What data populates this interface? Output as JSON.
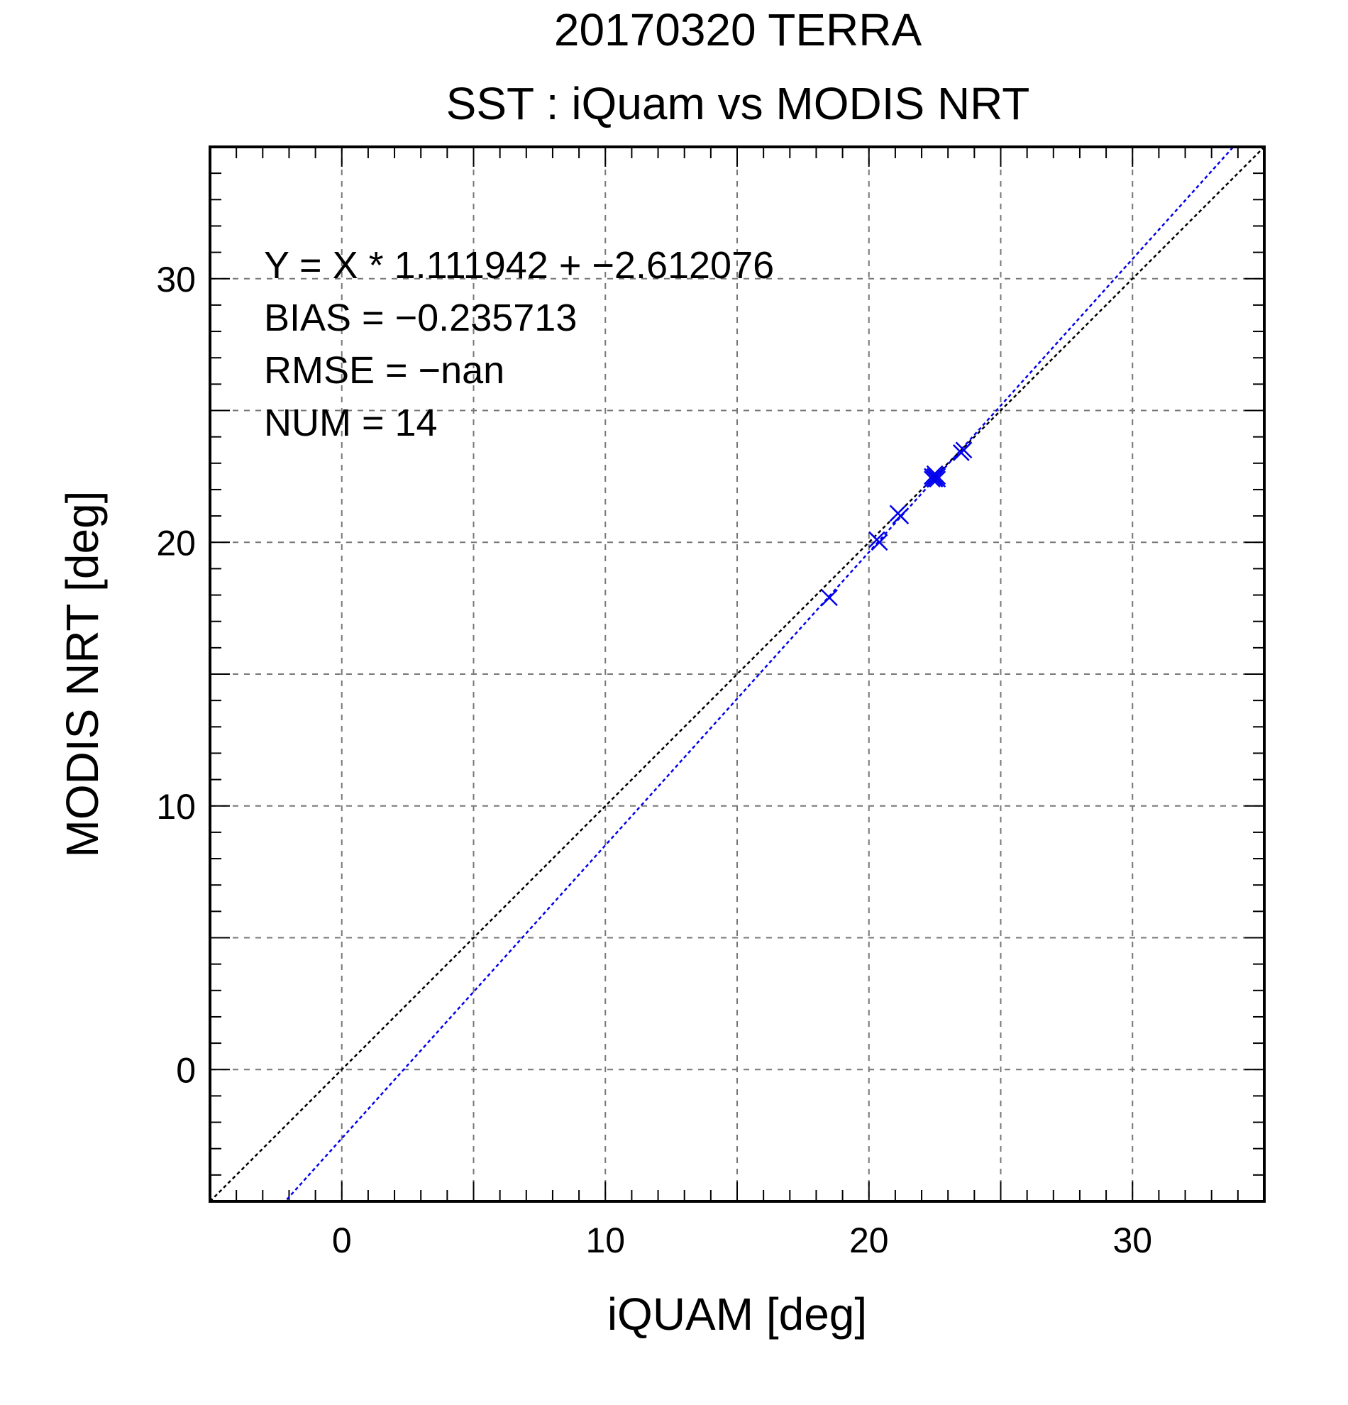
{
  "chart_data": {
    "type": "scatter",
    "title": "20170320 TERRA",
    "subtitle": "SST : iQuam vs MODIS NRT",
    "xlabel": "iQUAM [deg]",
    "ylabel": "MODIS NRT [deg]",
    "xlim": [
      -5,
      35
    ],
    "ylim": [
      -5,
      35
    ],
    "x_ticks": [
      0,
      10,
      20,
      30
    ],
    "y_ticks": [
      0,
      10,
      20,
      30
    ],
    "x_tick_labels": [
      "0",
      "10",
      "20",
      "30"
    ],
    "y_tick_labels": [
      "0",
      "10",
      "20",
      "30"
    ],
    "grid": true,
    "grid_step": 5,
    "minor_tick_step": 1,
    "stats": {
      "fit_text": "Y = X * 1.111942 + −2.612076",
      "bias_text": "BIAS = −0.235713",
      "rmse_text": "RMSE = −nan",
      "num_text": "NUM = 14"
    },
    "fit_line": {
      "slope": 1.111942,
      "intercept": -2.612076,
      "color": "#0000ee"
    },
    "identity_line": {
      "slope": 1,
      "intercept": 0,
      "color": "#000000"
    },
    "marker_color": "#0000ee",
    "points": [
      {
        "x": 18.5,
        "y": 17.9
      },
      {
        "x": 20.3,
        "y": 20.1
      },
      {
        "x": 20.4,
        "y": 20.0
      },
      {
        "x": 21.1,
        "y": 21.1
      },
      {
        "x": 21.2,
        "y": 21.0
      },
      {
        "x": 22.4,
        "y": 22.5
      },
      {
        "x": 22.5,
        "y": 22.4
      },
      {
        "x": 22.6,
        "y": 22.5
      },
      {
        "x": 22.5,
        "y": 22.6
      },
      {
        "x": 22.4,
        "y": 22.4
      },
      {
        "x": 22.6,
        "y": 22.4
      },
      {
        "x": 22.5,
        "y": 22.5
      },
      {
        "x": 23.5,
        "y": 23.4
      },
      {
        "x": 23.6,
        "y": 23.5
      }
    ]
  }
}
